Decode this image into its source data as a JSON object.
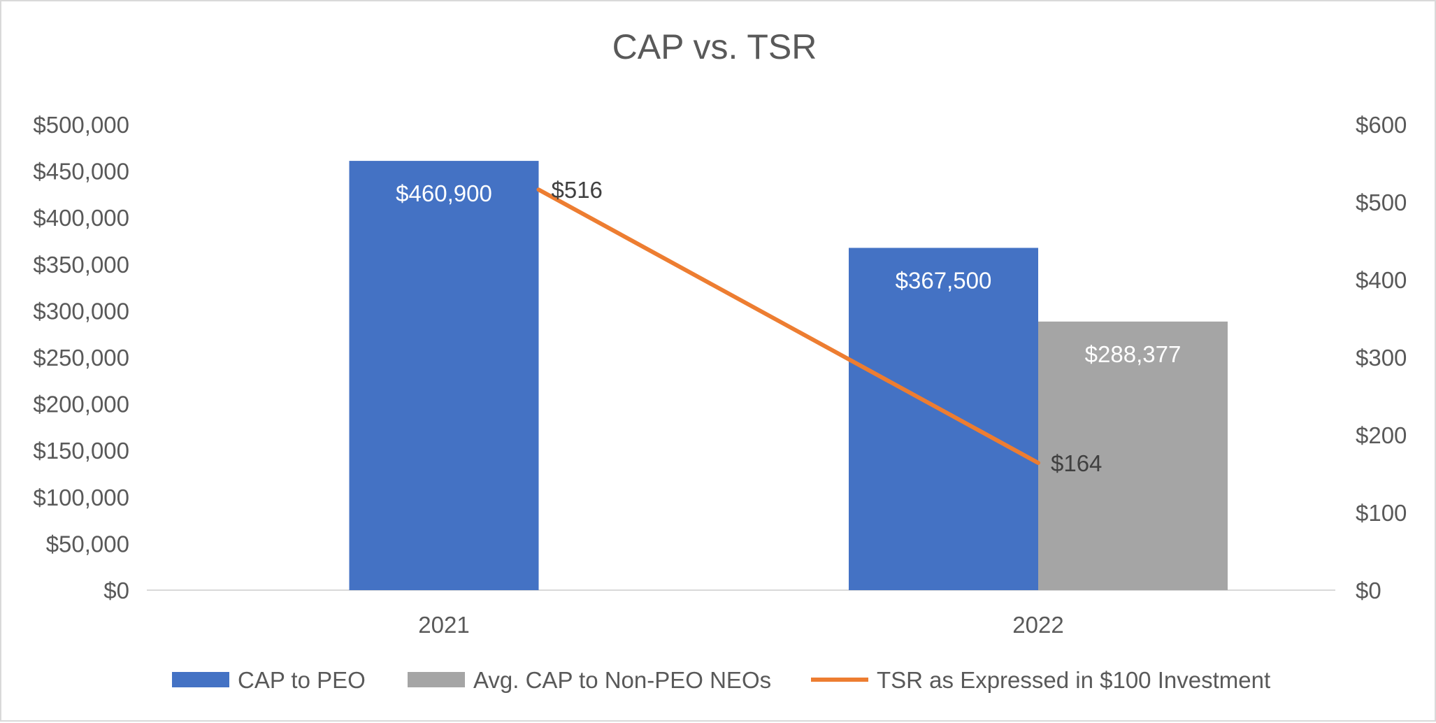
{
  "chart_data": {
    "type": "bar",
    "title": "CAP vs. TSR",
    "categories": [
      "2021",
      "2022"
    ],
    "series": [
      {
        "name": "CAP to PEO",
        "kind": "bar",
        "axis": "left",
        "color": "#4472c4",
        "values": [
          460900,
          367500
        ],
        "labels": [
          "$460,900",
          "$367,500"
        ]
      },
      {
        "name": "Avg. CAP to Non-PEO NEOs",
        "kind": "bar",
        "axis": "left",
        "color": "#a5a5a5",
        "values": [
          null,
          288377
        ],
        "labels": [
          null,
          "$288,377"
        ]
      },
      {
        "name": "TSR as Expressed in $100 Investment",
        "kind": "line",
        "axis": "right",
        "color": "#ed7d31",
        "values": [
          516,
          164
        ],
        "labels": [
          "$516",
          "$164"
        ]
      }
    ],
    "y_left": {
      "ylim": [
        0,
        500000
      ],
      "ticks": [
        0,
        50000,
        100000,
        150000,
        200000,
        250000,
        300000,
        350000,
        400000,
        450000,
        500000
      ],
      "tick_labels": [
        "$0",
        "$50,000",
        "$100,000",
        "$150,000",
        "$200,000",
        "$250,000",
        "$300,000",
        "$350,000",
        "$400,000",
        "$450,000",
        "$500,000"
      ]
    },
    "y_right": {
      "ylim": [
        0,
        600
      ],
      "ticks": [
        0,
        100,
        200,
        300,
        400,
        500,
        600
      ],
      "tick_labels": [
        "$0",
        "$100",
        "$200",
        "$300",
        "$400",
        "$500",
        "$600"
      ]
    },
    "grid": false,
    "legend": "bottom"
  }
}
